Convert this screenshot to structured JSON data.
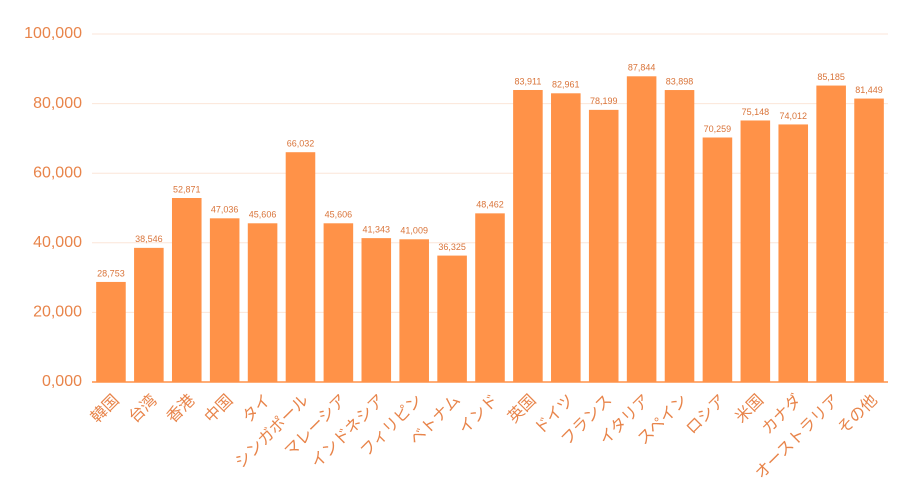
{
  "chart_data": {
    "type": "bar",
    "categories": [
      "韓国",
      "台湾",
      "香港",
      "中国",
      "タイ",
      "シンガポール",
      "マレーシア",
      "インドネシア",
      "フィリピン",
      "ベトナム",
      "インド",
      "英国",
      "ドイツ",
      "フランス",
      "イタリア",
      "スペイン",
      "ロシア",
      "米国",
      "カナダ",
      "オーストラリア",
      "その他"
    ],
    "values": [
      28753,
      38546,
      52871,
      47036,
      45606,
      66032,
      45606,
      41343,
      41009,
      36325,
      48462,
      83911,
      82961,
      78199,
      87844,
      83898,
      70259,
      75148,
      74012,
      85185,
      81449
    ],
    "value_labels": [
      "28,753",
      "38,546",
      "52,871",
      "47,036",
      "45,606",
      "66,032",
      "45,606",
      "41,343",
      "41,009",
      "36,325",
      "48,462",
      "83,911",
      "82,961",
      "78,199",
      "87,844",
      "83,898",
      "70,259",
      "75,148",
      "74,012",
      "85,185",
      "81,449"
    ],
    "color": "#ff9248",
    "ylim": [
      0,
      100000
    ],
    "yticks": [
      {
        "value": 0,
        "label": "0,000"
      },
      {
        "value": 20000,
        "label": "20,000"
      },
      {
        "value": 40000,
        "label": "40,000"
      },
      {
        "value": 60000,
        "label": "60,000"
      },
      {
        "value": 80000,
        "label": "80,000"
      },
      {
        "value": 100000,
        "label": "100,000"
      }
    ],
    "grid": true
  }
}
